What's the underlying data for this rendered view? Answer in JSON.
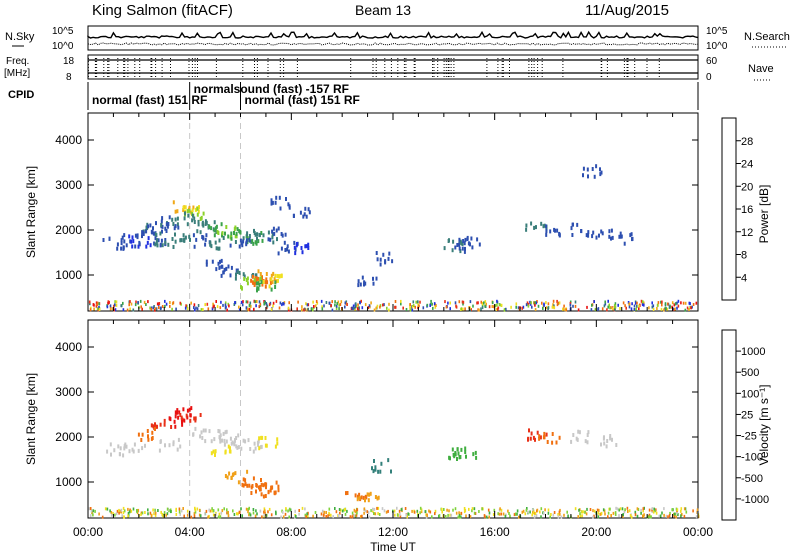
{
  "header": {
    "station": "King Salmon (fitACF)",
    "beam": "Beam 13",
    "date": "11/Aug/2015"
  },
  "status_panels": {
    "nsky_label": "N.Sky",
    "nsearch_label": "N.Search",
    "freq_label_1": "Freq.",
    "freq_label_2": "[MHz]",
    "nave_label": "Nave",
    "cpid_label": "CPID",
    "left_ticks_top": [
      "10^5",
      "10^0"
    ],
    "right_ticks_top": [
      "10^5",
      "10^0"
    ],
    "left_ticks_freq": [
      "18",
      "8"
    ],
    "right_ticks_nave": [
      "60",
      "0"
    ],
    "cpid_segments": [
      {
        "label": "normal (fast)  151 RF",
        "start_h": 0.0,
        "end_h": 4.0
      },
      {
        "label": "normalsound (fast) -157 RF",
        "start_h": 4.0,
        "end_h": 6.0
      },
      {
        "label": "normal (fast)  151 RF",
        "start_h": 6.0,
        "end_h": 24.0
      }
    ]
  },
  "colorbars": {
    "power": {
      "label": "Power [dB]",
      "ticks": [
        "28",
        "24",
        "20",
        "16",
        "12",
        "8",
        "4"
      ],
      "colors": [
        "#2030e0",
        "#2d4fb0",
        "#3a7e7a",
        "#3aa24a",
        "#8bd12a",
        "#f0e020",
        "#f0a818",
        "#f07010",
        "#e83018",
        "#e81010"
      ]
    },
    "velocity": {
      "label": "Velocity [m s⁻¹]",
      "ticks": [
        "1000",
        "500",
        "100",
        "25",
        "-25",
        "-100",
        "-500",
        "-1000"
      ],
      "colors": [
        "#2030c8",
        "#2e4aa8",
        "#33807a",
        "#3fae3f",
        "#7fd23a",
        "#c8c8c8",
        "#f0e020",
        "#f0a018",
        "#f07010",
        "#e83018",
        "#e81010"
      ]
    }
  },
  "chart_data": [
    {
      "type": "scatter",
      "panel": "power",
      "xlabel": "",
      "ylabel": "Slant Range [km]",
      "xlim": [
        0,
        24
      ],
      "ylim": [
        200,
        4600
      ],
      "yticks": [
        1000,
        2000,
        3000,
        4000
      ],
      "dashed_lines_h": [
        4.0,
        6.0
      ],
      "points": [
        {
          "x": 3.7,
          "y": 2550,
          "v": 20
        },
        {
          "x": 3.9,
          "y": 2450,
          "v": 18
        },
        {
          "x": 4.1,
          "y": 2400,
          "v": 14
        },
        {
          "x": 3.5,
          "y": 2300,
          "v": 10
        },
        {
          "x": 4.3,
          "y": 2300,
          "v": 8
        },
        {
          "x": 3.2,
          "y": 2200,
          "v": 6
        },
        {
          "x": 2.8,
          "y": 2100,
          "v": 6
        },
        {
          "x": 2.5,
          "y": 2050,
          "v": 8
        },
        {
          "x": 2.2,
          "y": 2000,
          "v": 6
        },
        {
          "x": 4.6,
          "y": 2100,
          "v": 10
        },
        {
          "x": 5.0,
          "y": 2050,
          "v": 12
        },
        {
          "x": 5.4,
          "y": 2000,
          "v": 14
        },
        {
          "x": 5.8,
          "y": 1950,
          "v": 12
        },
        {
          "x": 6.2,
          "y": 1900,
          "v": 10
        },
        {
          "x": 6.6,
          "y": 1850,
          "v": 12
        },
        {
          "x": 7.0,
          "y": 1900,
          "v": 8
        },
        {
          "x": 7.4,
          "y": 1950,
          "v": 6
        },
        {
          "x": 1.0,
          "y": 1750,
          "v": 6
        },
        {
          "x": 1.6,
          "y": 1800,
          "v": 6
        },
        {
          "x": 2.0,
          "y": 1800,
          "v": 4
        },
        {
          "x": 2.6,
          "y": 1750,
          "v": 6
        },
        {
          "x": 3.0,
          "y": 1800,
          "v": 8
        },
        {
          "x": 3.6,
          "y": 1850,
          "v": 10
        },
        {
          "x": 4.5,
          "y": 1800,
          "v": 6
        },
        {
          "x": 5.2,
          "y": 1750,
          "v": 8
        },
        {
          "x": 6.0,
          "y": 1700,
          "v": 6
        },
        {
          "x": 7.8,
          "y": 1650,
          "v": 6
        },
        {
          "x": 8.2,
          "y": 1650,
          "v": 4
        },
        {
          "x": 5.0,
          "y": 1250,
          "v": 6
        },
        {
          "x": 5.6,
          "y": 1150,
          "v": 6
        },
        {
          "x": 6.2,
          "y": 1050,
          "v": 10
        },
        {
          "x": 6.6,
          "y": 950,
          "v": 22
        },
        {
          "x": 6.8,
          "y": 900,
          "v": 24
        },
        {
          "x": 7.0,
          "y": 1000,
          "v": 20
        },
        {
          "x": 7.2,
          "y": 900,
          "v": 16
        },
        {
          "x": 6.4,
          "y": 850,
          "v": 14
        },
        {
          "x": 6.9,
          "y": 800,
          "v": 12
        },
        {
          "x": 7.5,
          "y": 2650,
          "v": 6
        },
        {
          "x": 8.3,
          "y": 2450,
          "v": 6
        },
        {
          "x": 14.3,
          "y": 1700,
          "v": 8
        },
        {
          "x": 14.7,
          "y": 1650,
          "v": 6
        },
        {
          "x": 15.0,
          "y": 1750,
          "v": 6
        },
        {
          "x": 17.6,
          "y": 2100,
          "v": 8
        },
        {
          "x": 18.2,
          "y": 2000,
          "v": 6
        },
        {
          "x": 19.3,
          "y": 2050,
          "v": 6
        },
        {
          "x": 20.2,
          "y": 1950,
          "v": 6
        },
        {
          "x": 21.0,
          "y": 1850,
          "v": 6
        },
        {
          "x": 11.5,
          "y": 1400,
          "v": 6
        },
        {
          "x": 19.8,
          "y": 3350,
          "v": 6
        },
        {
          "x": 11.0,
          "y": 900,
          "v": 6
        }
      ],
      "near_range_band": {
        "y_min": 250,
        "y_max": 450
      }
    },
    {
      "type": "scatter",
      "panel": "velocity",
      "xlabel": "Time UT",
      "ylabel": "Slant Range [km]",
      "xlim": [
        0,
        24
      ],
      "ylim": [
        200,
        4600
      ],
      "xticks": [
        "00:00",
        "04:00",
        "08:00",
        "12:00",
        "16:00",
        "20:00",
        "00:00"
      ],
      "yticks": [
        1000,
        2000,
        3000,
        4000
      ],
      "dashed_lines_h": [
        4.0,
        6.0
      ],
      "points": [
        {
          "x": 3.8,
          "y": 2600,
          "v": -1000
        },
        {
          "x": 4.0,
          "y": 2500,
          "v": -500
        },
        {
          "x": 3.6,
          "y": 2400,
          "v": -800
        },
        {
          "x": 2.8,
          "y": 2300,
          "v": -300
        },
        {
          "x": 2.3,
          "y": 2100,
          "v": -200
        },
        {
          "x": 4.5,
          "y": 2100,
          "v": 0
        },
        {
          "x": 5.0,
          "y": 2050,
          "v": 0
        },
        {
          "x": 5.5,
          "y": 1950,
          "v": 0
        },
        {
          "x": 6.0,
          "y": 1900,
          "v": 10
        },
        {
          "x": 6.5,
          "y": 1850,
          "v": 0
        },
        {
          "x": 7.0,
          "y": 1900,
          "v": -10
        },
        {
          "x": 1.0,
          "y": 1750,
          "v": 0
        },
        {
          "x": 1.8,
          "y": 1800,
          "v": 0
        },
        {
          "x": 3.2,
          "y": 1850,
          "v": 0
        },
        {
          "x": 5.2,
          "y": 1750,
          "v": -20
        },
        {
          "x": 6.4,
          "y": 1000,
          "v": -200
        },
        {
          "x": 6.8,
          "y": 950,
          "v": -150
        },
        {
          "x": 7.2,
          "y": 900,
          "v": -120
        },
        {
          "x": 6.6,
          "y": 850,
          "v": -250
        },
        {
          "x": 5.8,
          "y": 1150,
          "v": -100
        },
        {
          "x": 14.5,
          "y": 1700,
          "v": 200
        },
        {
          "x": 14.8,
          "y": 1650,
          "v": 150
        },
        {
          "x": 17.6,
          "y": 2100,
          "v": -300
        },
        {
          "x": 18.1,
          "y": 2050,
          "v": -200
        },
        {
          "x": 19.4,
          "y": 2050,
          "v": 0
        },
        {
          "x": 20.4,
          "y": 1950,
          "v": 0
        },
        {
          "x": 11.5,
          "y": 1400,
          "v": 300
        },
        {
          "x": 10.5,
          "y": 700,
          "v": -150
        },
        {
          "x": 11.0,
          "y": 650,
          "v": -60
        }
      ],
      "near_range_band": {
        "y_min": 250,
        "y_max": 450
      }
    }
  ]
}
